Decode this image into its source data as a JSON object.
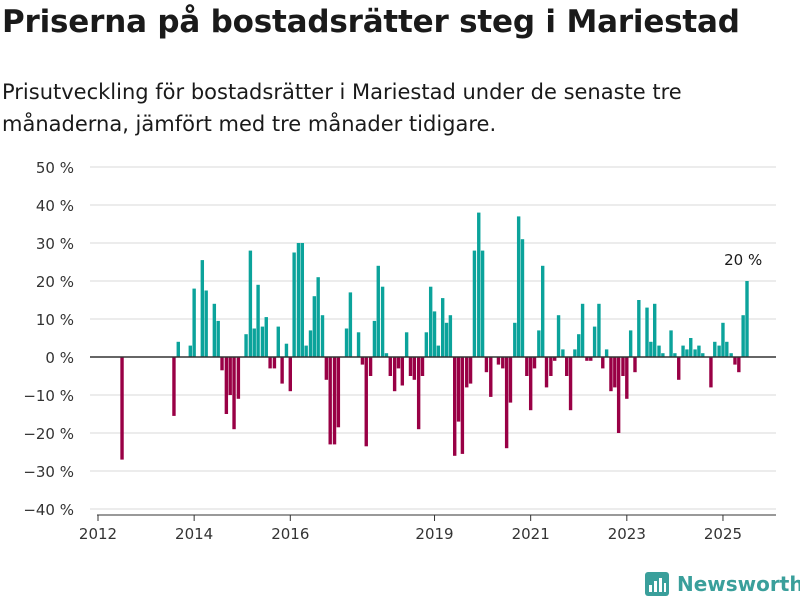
{
  "header": {
    "title": "Priserna på bostadsrätter steg i Mariestad",
    "subtitle": "Prisutveckling för bostadsrätter i Mariestad under de senaste tre månaderna, jämfört med tre månader tidigare."
  },
  "brand": {
    "name": "Newsworthy"
  },
  "colors": {
    "positive": "#0ba39b",
    "negative": "#990045",
    "grid": "#d9d9d9",
    "zero": "#333333",
    "brand": "#3a9f9b"
  },
  "chart_data": {
    "type": "bar",
    "title": "",
    "xlabel": "",
    "ylabel": "",
    "ylim": [
      -40,
      50
    ],
    "yticks": [
      50,
      40,
      30,
      20,
      10,
      0,
      -10,
      -20,
      -30,
      -40
    ],
    "ytick_labels": [
      "50 %",
      "40 %",
      "30 %",
      "20 %",
      "10 %",
      "0 %",
      "−10 %",
      "−20 %",
      "−30 %",
      "−40 %"
    ],
    "xlim": [
      2012.0,
      2025.5
    ],
    "xticks": [
      2012,
      2014,
      2016,
      2019,
      2021,
      2023,
      2025
    ],
    "grid": true,
    "annotation": {
      "x": 2025.42,
      "value": 20,
      "text": "20 %"
    },
    "points": [
      {
        "x": 2012.5,
        "y": -27
      },
      {
        "x": 2013.58,
        "y": -15.5
      },
      {
        "x": 2013.67,
        "y": 4
      },
      {
        "x": 2013.92,
        "y": 3
      },
      {
        "x": 2014.0,
        "y": 18
      },
      {
        "x": 2014.17,
        "y": 25.5
      },
      {
        "x": 2014.25,
        "y": 17.5
      },
      {
        "x": 2014.42,
        "y": 14
      },
      {
        "x": 2014.5,
        "y": 9.5
      },
      {
        "x": 2014.58,
        "y": -3.5
      },
      {
        "x": 2014.67,
        "y": -15
      },
      {
        "x": 2014.75,
        "y": -10
      },
      {
        "x": 2014.83,
        "y": -19
      },
      {
        "x": 2014.92,
        "y": -11
      },
      {
        "x": 2015.08,
        "y": 6
      },
      {
        "x": 2015.17,
        "y": 28
      },
      {
        "x": 2015.25,
        "y": 7.5
      },
      {
        "x": 2015.33,
        "y": 19
      },
      {
        "x": 2015.42,
        "y": 8
      },
      {
        "x": 2015.5,
        "y": 10.5
      },
      {
        "x": 2015.58,
        "y": -3
      },
      {
        "x": 2015.67,
        "y": -3
      },
      {
        "x": 2015.75,
        "y": 8
      },
      {
        "x": 2015.83,
        "y": -7
      },
      {
        "x": 2015.92,
        "y": 3.5
      },
      {
        "x": 2016.0,
        "y": -9
      },
      {
        "x": 2016.08,
        "y": 27.5
      },
      {
        "x": 2016.17,
        "y": 30
      },
      {
        "x": 2016.25,
        "y": 30
      },
      {
        "x": 2016.33,
        "y": 3
      },
      {
        "x": 2016.42,
        "y": 7
      },
      {
        "x": 2016.5,
        "y": 16
      },
      {
        "x": 2016.58,
        "y": 21
      },
      {
        "x": 2016.67,
        "y": 11
      },
      {
        "x": 2016.75,
        "y": -6
      },
      {
        "x": 2016.83,
        "y": -23
      },
      {
        "x": 2016.92,
        "y": -23
      },
      {
        "x": 2017.0,
        "y": -18.5
      },
      {
        "x": 2017.17,
        "y": 7.5
      },
      {
        "x": 2017.25,
        "y": 17
      },
      {
        "x": 2017.42,
        "y": 6.5
      },
      {
        "x": 2017.5,
        "y": -2
      },
      {
        "x": 2017.58,
        "y": -23.5
      },
      {
        "x": 2017.67,
        "y": -5
      },
      {
        "x": 2017.75,
        "y": 9.5
      },
      {
        "x": 2017.83,
        "y": 24
      },
      {
        "x": 2017.92,
        "y": 18.5
      },
      {
        "x": 2018.0,
        "y": 1
      },
      {
        "x": 2018.08,
        "y": -5
      },
      {
        "x": 2018.17,
        "y": -9
      },
      {
        "x": 2018.25,
        "y": -3
      },
      {
        "x": 2018.33,
        "y": -7.5
      },
      {
        "x": 2018.42,
        "y": 6.5
      },
      {
        "x": 2018.5,
        "y": -5
      },
      {
        "x": 2018.58,
        "y": -6
      },
      {
        "x": 2018.67,
        "y": -19
      },
      {
        "x": 2018.75,
        "y": -5
      },
      {
        "x": 2018.83,
        "y": 6.5
      },
      {
        "x": 2018.92,
        "y": 18.5
      },
      {
        "x": 2019.0,
        "y": 12
      },
      {
        "x": 2019.08,
        "y": 3
      },
      {
        "x": 2019.17,
        "y": 15.5
      },
      {
        "x": 2019.25,
        "y": 9
      },
      {
        "x": 2019.33,
        "y": 11
      },
      {
        "x": 2019.42,
        "y": -26
      },
      {
        "x": 2019.5,
        "y": -17
      },
      {
        "x": 2019.58,
        "y": -25.5
      },
      {
        "x": 2019.67,
        "y": -8
      },
      {
        "x": 2019.75,
        "y": -7
      },
      {
        "x": 2019.83,
        "y": 28
      },
      {
        "x": 2019.92,
        "y": 38
      },
      {
        "x": 2020.0,
        "y": 28
      },
      {
        "x": 2020.08,
        "y": -4
      },
      {
        "x": 2020.17,
        "y": -10.5
      },
      {
        "x": 2020.33,
        "y": -2
      },
      {
        "x": 2020.42,
        "y": -3
      },
      {
        "x": 2020.5,
        "y": -24
      },
      {
        "x": 2020.58,
        "y": -12
      },
      {
        "x": 2020.67,
        "y": 9
      },
      {
        "x": 2020.75,
        "y": 37
      },
      {
        "x": 2020.83,
        "y": 31
      },
      {
        "x": 2020.92,
        "y": -5
      },
      {
        "x": 2021.0,
        "y": -14
      },
      {
        "x": 2021.08,
        "y": -3
      },
      {
        "x": 2021.17,
        "y": 7
      },
      {
        "x": 2021.25,
        "y": 24
      },
      {
        "x": 2021.33,
        "y": -8
      },
      {
        "x": 2021.42,
        "y": -5
      },
      {
        "x": 2021.5,
        "y": -1
      },
      {
        "x": 2021.58,
        "y": 11
      },
      {
        "x": 2021.67,
        "y": 2
      },
      {
        "x": 2021.75,
        "y": -5
      },
      {
        "x": 2021.83,
        "y": -14
      },
      {
        "x": 2021.92,
        "y": 2
      },
      {
        "x": 2022.0,
        "y": 6
      },
      {
        "x": 2022.08,
        "y": 14
      },
      {
        "x": 2022.17,
        "y": -1
      },
      {
        "x": 2022.25,
        "y": -1
      },
      {
        "x": 2022.33,
        "y": 8
      },
      {
        "x": 2022.42,
        "y": 14
      },
      {
        "x": 2022.5,
        "y": -3
      },
      {
        "x": 2022.58,
        "y": 2
      },
      {
        "x": 2022.67,
        "y": -9
      },
      {
        "x": 2022.75,
        "y": -8
      },
      {
        "x": 2022.83,
        "y": -20
      },
      {
        "x": 2022.92,
        "y": -5
      },
      {
        "x": 2023.0,
        "y": -11
      },
      {
        "x": 2023.08,
        "y": 7
      },
      {
        "x": 2023.17,
        "y": -4
      },
      {
        "x": 2023.25,
        "y": 15
      },
      {
        "x": 2023.42,
        "y": 13
      },
      {
        "x": 2023.5,
        "y": 4
      },
      {
        "x": 2023.58,
        "y": 14
      },
      {
        "x": 2023.67,
        "y": 3
      },
      {
        "x": 2023.75,
        "y": 1
      },
      {
        "x": 2023.92,
        "y": 7
      },
      {
        "x": 2024.0,
        "y": 1
      },
      {
        "x": 2024.08,
        "y": -6
      },
      {
        "x": 2024.17,
        "y": 3
      },
      {
        "x": 2024.25,
        "y": 2
      },
      {
        "x": 2024.33,
        "y": 5
      },
      {
        "x": 2024.42,
        "y": 2
      },
      {
        "x": 2024.5,
        "y": 3
      },
      {
        "x": 2024.58,
        "y": 1
      },
      {
        "x": 2024.75,
        "y": -8
      },
      {
        "x": 2024.83,
        "y": 4
      },
      {
        "x": 2024.92,
        "y": 3
      },
      {
        "x": 2025.0,
        "y": 9
      },
      {
        "x": 2025.08,
        "y": 4
      },
      {
        "x": 2025.17,
        "y": 1
      },
      {
        "x": 2025.25,
        "y": -2
      },
      {
        "x": 2025.33,
        "y": -4
      },
      {
        "x": 2025.42,
        "y": 11
      },
      {
        "x": 2025.5,
        "y": 20
      }
    ]
  }
}
